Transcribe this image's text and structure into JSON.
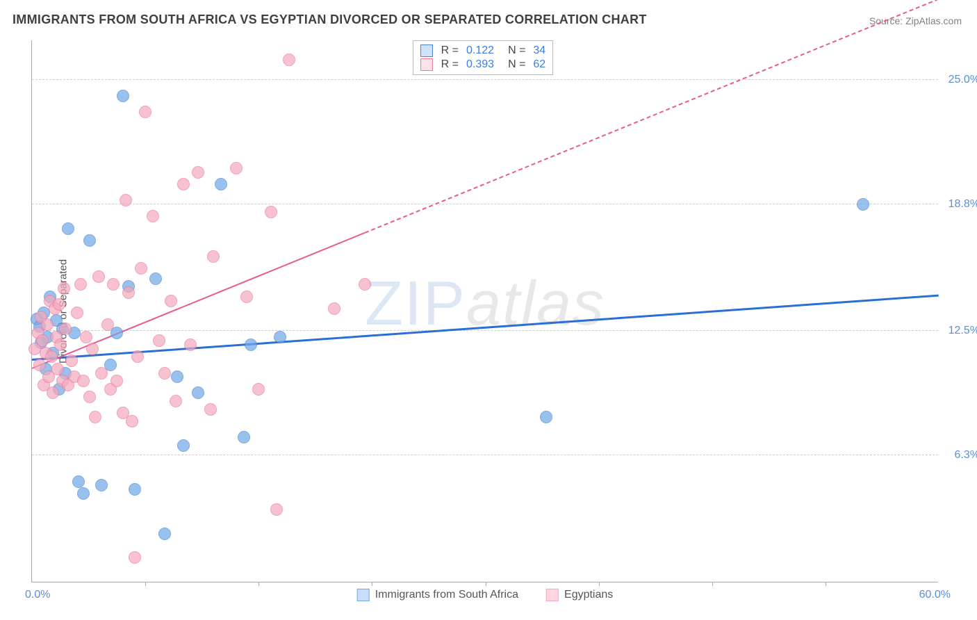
{
  "title": "IMMIGRANTS FROM SOUTH AFRICA VS EGYPTIAN DIVORCED OR SEPARATED CORRELATION CHART",
  "source": "Source: ZipAtlas.com",
  "watermark": {
    "zip": "ZIP",
    "atlas": "atlas"
  },
  "chart": {
    "type": "scatter",
    "xlim": [
      0,
      60
    ],
    "ylim": [
      0,
      27
    ],
    "background_color": "#ffffff",
    "grid_color": "#cccccc",
    "axis_color": "#aaaaaa",
    "ylabel": "Divorced or Separated",
    "xlim_labels": {
      "min": "0.0%",
      "max": "60.0%"
    },
    "ygrid": [
      {
        "y": 6.3,
        "label": "6.3%"
      },
      {
        "y": 12.5,
        "label": "12.5%"
      },
      {
        "y": 18.8,
        "label": "18.8%"
      },
      {
        "y": 25.0,
        "label": "25.0%"
      }
    ],
    "xticks_minor": [
      7.5,
      15,
      22.5,
      30,
      37.5,
      45,
      52.5
    ],
    "point_radius": 9,
    "point_fill_opacity": 0.35,
    "point_stroke_width": 1.5,
    "series": [
      {
        "name": "Immigrants from South Africa",
        "color": "#6fa8e8",
        "stroke": "#4a86d8",
        "R": "0.122",
        "N": "34",
        "trend": {
          "y_at_xmin": 11.0,
          "y_at_xmax": 14.2,
          "solid_until_x": 60,
          "line_color": "#2a6fd6",
          "line_width": 3
        },
        "points": [
          [
            0.3,
            13.1
          ],
          [
            0.5,
            12.7
          ],
          [
            0.6,
            11.9
          ],
          [
            0.8,
            13.4
          ],
          [
            0.9,
            10.6
          ],
          [
            1.0,
            12.2
          ],
          [
            1.2,
            14.2
          ],
          [
            1.4,
            11.4
          ],
          [
            1.6,
            13.0
          ],
          [
            1.8,
            9.6
          ],
          [
            2.0,
            12.6
          ],
          [
            2.2,
            10.4
          ],
          [
            2.4,
            17.6
          ],
          [
            2.8,
            12.4
          ],
          [
            3.1,
            5.0
          ],
          [
            3.4,
            4.4
          ],
          [
            3.8,
            17.0
          ],
          [
            4.6,
            4.8
          ],
          [
            5.2,
            10.8
          ],
          [
            5.6,
            12.4
          ],
          [
            6.4,
            14.7
          ],
          [
            6.8,
            4.6
          ],
          [
            8.2,
            15.1
          ],
          [
            8.8,
            2.4
          ],
          [
            9.6,
            10.2
          ],
          [
            10.0,
            6.8
          ],
          [
            11.0,
            9.4
          ],
          [
            12.5,
            19.8
          ],
          [
            14.0,
            7.2
          ],
          [
            14.5,
            11.8
          ],
          [
            16.4,
            12.2
          ],
          [
            34.0,
            8.2
          ],
          [
            55.0,
            18.8
          ],
          [
            6.0,
            24.2
          ]
        ]
      },
      {
        "name": "Egyptians",
        "color": "#f4a9bb",
        "stroke": "#ea7aa0",
        "R": "0.393",
        "N": "62",
        "trend": {
          "y_at_xmin": 10.6,
          "y_at_xmax": 29.0,
          "solid_until_x": 22,
          "line_color": "#e85b8c",
          "line_width": 2.5
        },
        "points": [
          [
            0.2,
            11.6
          ],
          [
            0.4,
            12.4
          ],
          [
            0.5,
            10.8
          ],
          [
            0.6,
            13.2
          ],
          [
            0.7,
            12.0
          ],
          [
            0.8,
            9.8
          ],
          [
            0.9,
            11.4
          ],
          [
            1.0,
            12.8
          ],
          [
            1.1,
            10.2
          ],
          [
            1.2,
            14.0
          ],
          [
            1.3,
            11.2
          ],
          [
            1.4,
            9.4
          ],
          [
            1.5,
            13.6
          ],
          [
            1.6,
            12.2
          ],
          [
            1.7,
            10.6
          ],
          [
            1.8,
            13.8
          ],
          [
            1.9,
            11.8
          ],
          [
            2.0,
            10.0
          ],
          [
            2.1,
            14.6
          ],
          [
            2.2,
            12.6
          ],
          [
            2.4,
            9.8
          ],
          [
            2.6,
            11.0
          ],
          [
            2.8,
            10.2
          ],
          [
            3.0,
            13.4
          ],
          [
            3.2,
            14.8
          ],
          [
            3.4,
            10.0
          ],
          [
            3.6,
            12.2
          ],
          [
            3.8,
            9.2
          ],
          [
            4.0,
            11.6
          ],
          [
            4.2,
            8.2
          ],
          [
            4.4,
            15.2
          ],
          [
            4.6,
            10.4
          ],
          [
            5.0,
            12.8
          ],
          [
            5.2,
            9.6
          ],
          [
            5.4,
            14.8
          ],
          [
            5.6,
            10.0
          ],
          [
            6.0,
            8.4
          ],
          [
            6.2,
            19.0
          ],
          [
            6.4,
            14.4
          ],
          [
            6.6,
            8.0
          ],
          [
            6.8,
            1.2
          ],
          [
            7.0,
            11.2
          ],
          [
            7.2,
            15.6
          ],
          [
            7.5,
            23.4
          ],
          [
            8.0,
            18.2
          ],
          [
            8.4,
            12.0
          ],
          [
            8.8,
            10.4
          ],
          [
            9.2,
            14.0
          ],
          [
            9.5,
            9.0
          ],
          [
            10.0,
            19.8
          ],
          [
            10.5,
            11.8
          ],
          [
            11.0,
            20.4
          ],
          [
            11.8,
            8.6
          ],
          [
            12.0,
            16.2
          ],
          [
            13.5,
            20.6
          ],
          [
            14.2,
            14.2
          ],
          [
            15.0,
            9.6
          ],
          [
            15.8,
            18.4
          ],
          [
            16.2,
            3.6
          ],
          [
            17.0,
            26.0
          ],
          [
            20.0,
            13.6
          ],
          [
            22.0,
            14.8
          ]
        ]
      }
    ]
  },
  "bottom_legend": [
    {
      "label": "Immigrants from South Africa",
      "fill": "#c9deff",
      "stroke": "#6fa8e8"
    },
    {
      "label": "Egyptians",
      "fill": "#ffd5e0",
      "stroke": "#f4a9bb"
    }
  ]
}
